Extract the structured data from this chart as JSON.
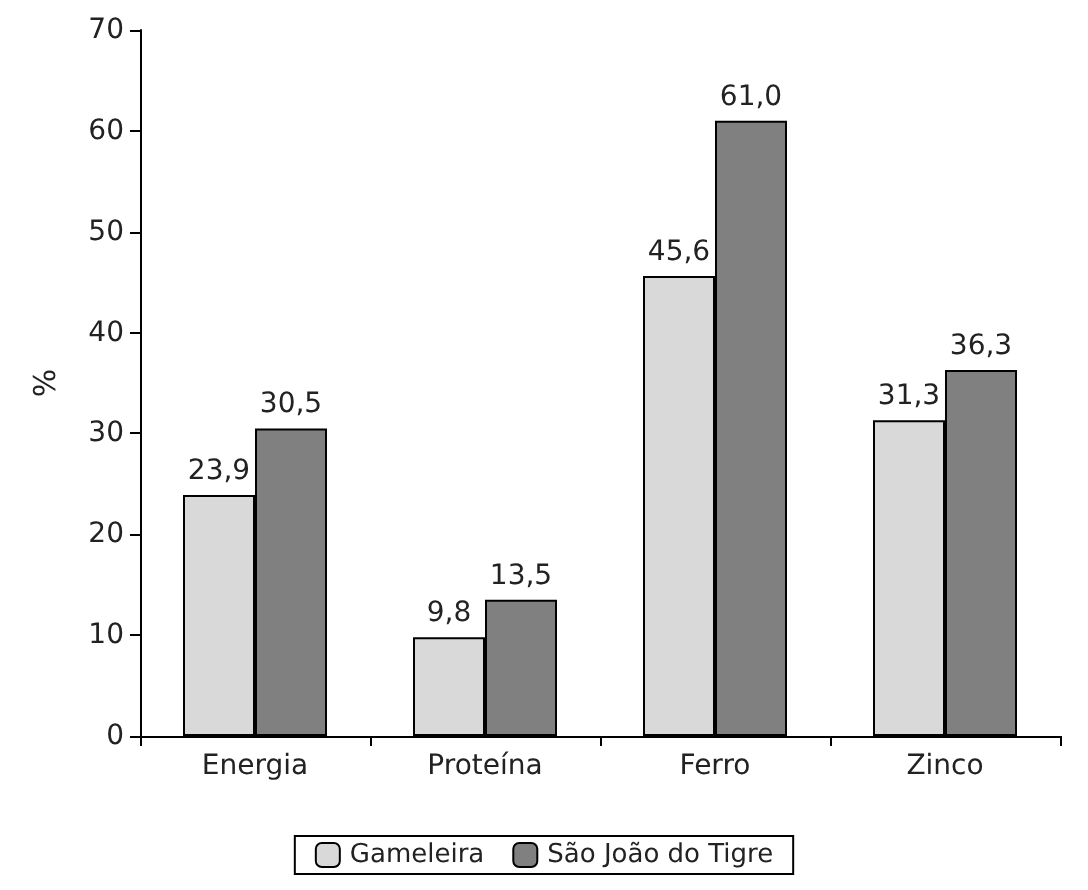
{
  "chart_data": {
    "type": "bar",
    "ylabel": "%",
    "categories": [
      "Energia",
      "Proteína",
      "Ferro",
      "Zinco"
    ],
    "series": [
      {
        "name": "Gameleira",
        "color": "#d9d9d9",
        "values": [
          23.9,
          9.8,
          45.6,
          31.3
        ],
        "value_labels": [
          "23,9",
          "9,8",
          "45,6",
          "31,3"
        ]
      },
      {
        "name": "São João do Tigre",
        "color": "#808080",
        "values": [
          30.5,
          13.5,
          61.0,
          36.3
        ],
        "value_labels": [
          "30,5",
          "13,5",
          "61,0",
          "36,3"
        ]
      }
    ],
    "ylim": [
      0,
      70
    ],
    "yticks": [
      0,
      10,
      20,
      30,
      40,
      50,
      60,
      70
    ],
    "grid": false,
    "legend": "bottom"
  }
}
